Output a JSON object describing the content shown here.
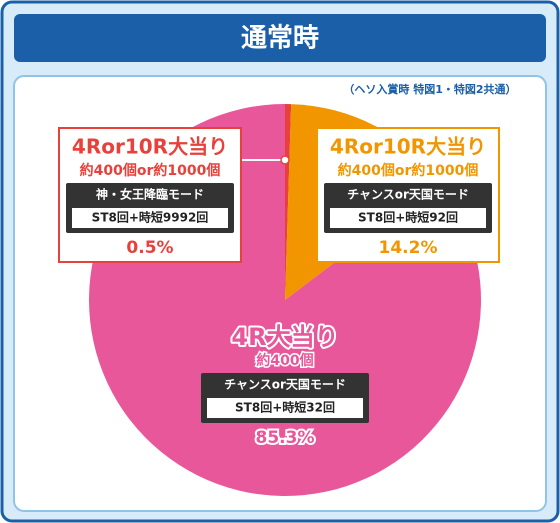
{
  "chart_data": {
    "type": "pie",
    "title": "通常時",
    "note": "（ヘソ入賞時 特図1・特図2共通）",
    "categories": [
      "4Ror10R大当り",
      "4Ror10R大当り",
      "4R大当り"
    ],
    "payouts": [
      "約400個or約1000個",
      "約400個or約1000個",
      "約400個"
    ],
    "modes": [
      "神・女王降臨モード",
      "チャンスor天国モード",
      "チャンスor天国モード"
    ],
    "details": [
      "ST8回+時短9992回",
      "ST8回+時短92回",
      "ST8回+時短32回"
    ],
    "values": [
      0.5,
      14.2,
      85.3
    ],
    "value_labels": [
      "0.5%",
      "14.2%",
      "85.3%"
    ],
    "colors": [
      "#e8413c",
      "#f29600",
      "#e8579a"
    ]
  }
}
